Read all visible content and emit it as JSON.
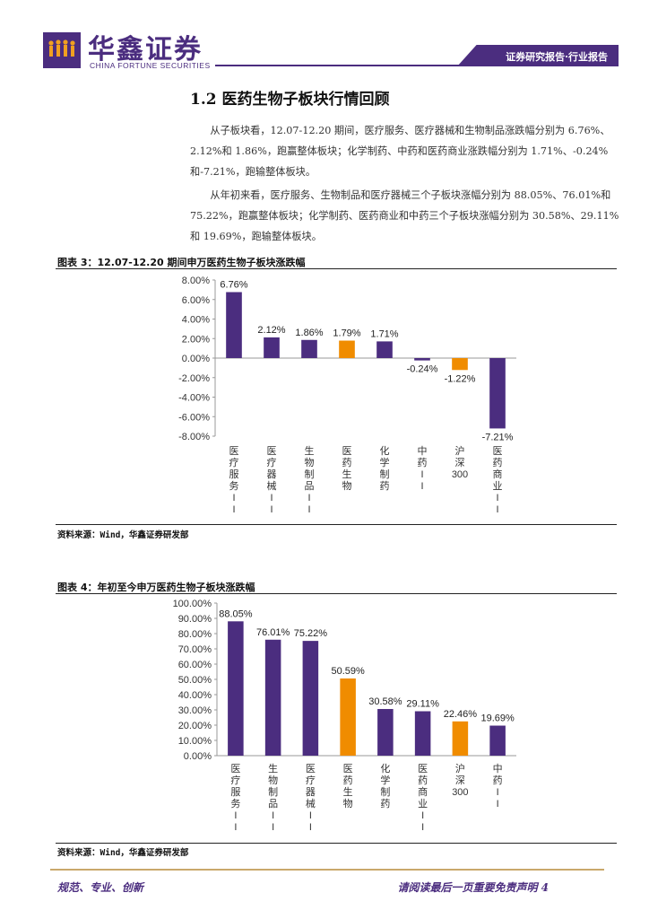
{
  "header": {
    "brand_cn": "华鑫证券",
    "brand_en": "CHINA FORTUNE SECURITIES",
    "tag": "证券研究报告·行业报告",
    "brand_color": "#4b2d7f"
  },
  "section": {
    "title": "1.2 医药生物子板块行情回顾",
    "para1": "从子板块看，12.07-12.20 期间，医疗服务、医疗器械和生物制品涨跌幅分别为 6.76%、2.12%和 1.86%，跑赢整体板块；化学制药、中药和医药商业涨跌幅分别为 1.71%、-0.24%和-7.21%，跑输整体板块。",
    "para2": "从年初来看，医疗服务、生物制品和医疗器械三个子板块涨幅分别为 88.05%、76.01%和 75.22%，跑赢整体板块；化学制药、医药商业和中药三个子板块涨幅分别为 30.58%、29.11%和 19.69%，跑输整体板块。"
  },
  "figure3": {
    "title": "图表 3：12.07-12.20 期间申万医药生物子板块涨跌幅",
    "source": "资料来源：Wind，华鑫证券研发部"
  },
  "figure4": {
    "title": "图表 4：年初至今申万医药生物子板块涨跌幅",
    "source": "资料来源：Wind，华鑫证券研发部"
  },
  "chart_data": [
    {
      "type": "bar",
      "title": "12.07-12.20 期间申万医药生物子板块涨跌幅",
      "categories": [
        "医疗服务II",
        "医疗器械II",
        "生物制品II",
        "医药生物",
        "化学制药",
        "中药II",
        "沪深300",
        "医药商业II"
      ],
      "values": [
        6.76,
        2.12,
        1.86,
        1.79,
        1.71,
        -0.24,
        -1.22,
        -7.21
      ],
      "labels": [
        "6.76%",
        "2.12%",
        "1.86%",
        "1.79%",
        "1.71%",
        "-0.24%",
        "-1.22%",
        "-7.21%"
      ],
      "highlight": [
        false,
        false,
        false,
        true,
        false,
        false,
        true,
        false
      ],
      "ylim": [
        -8,
        8
      ],
      "yticks": [
        "8.00%",
        "6.00%",
        "4.00%",
        "2.00%",
        "0.00%",
        "-2.00%",
        "-4.00%",
        "-6.00%",
        "-8.00%"
      ],
      "colors": {
        "base": "#4b2d7f",
        "highlight": "#f08c00"
      }
    },
    {
      "type": "bar",
      "title": "年初至今申万医药生物子板块涨跌幅",
      "categories": [
        "医疗服务II",
        "生物制品II",
        "医疗器械II",
        "医药生物",
        "化学制药",
        "医药商业II",
        "沪深300",
        "中药II"
      ],
      "values": [
        88.05,
        76.01,
        75.22,
        50.59,
        30.58,
        29.11,
        22.46,
        19.69
      ],
      "labels": [
        "88.05%",
        "76.01%",
        "75.22%",
        "50.59%",
        "30.58%",
        "29.11%",
        "22.46%",
        "19.69%"
      ],
      "highlight": [
        false,
        false,
        false,
        true,
        false,
        false,
        true,
        false
      ],
      "ylim": [
        0,
        100
      ],
      "yticks": [
        "100.00%",
        "90.00%",
        "80.00%",
        "70.00%",
        "60.00%",
        "50.00%",
        "40.00%",
        "30.00%",
        "20.00%",
        "10.00%",
        "0.00%"
      ],
      "colors": {
        "base": "#4b2d7f",
        "highlight": "#f08c00"
      }
    }
  ],
  "footer": {
    "left": "规范、专业、创新",
    "right": "请阅读最后一页重要免责声明 4"
  }
}
